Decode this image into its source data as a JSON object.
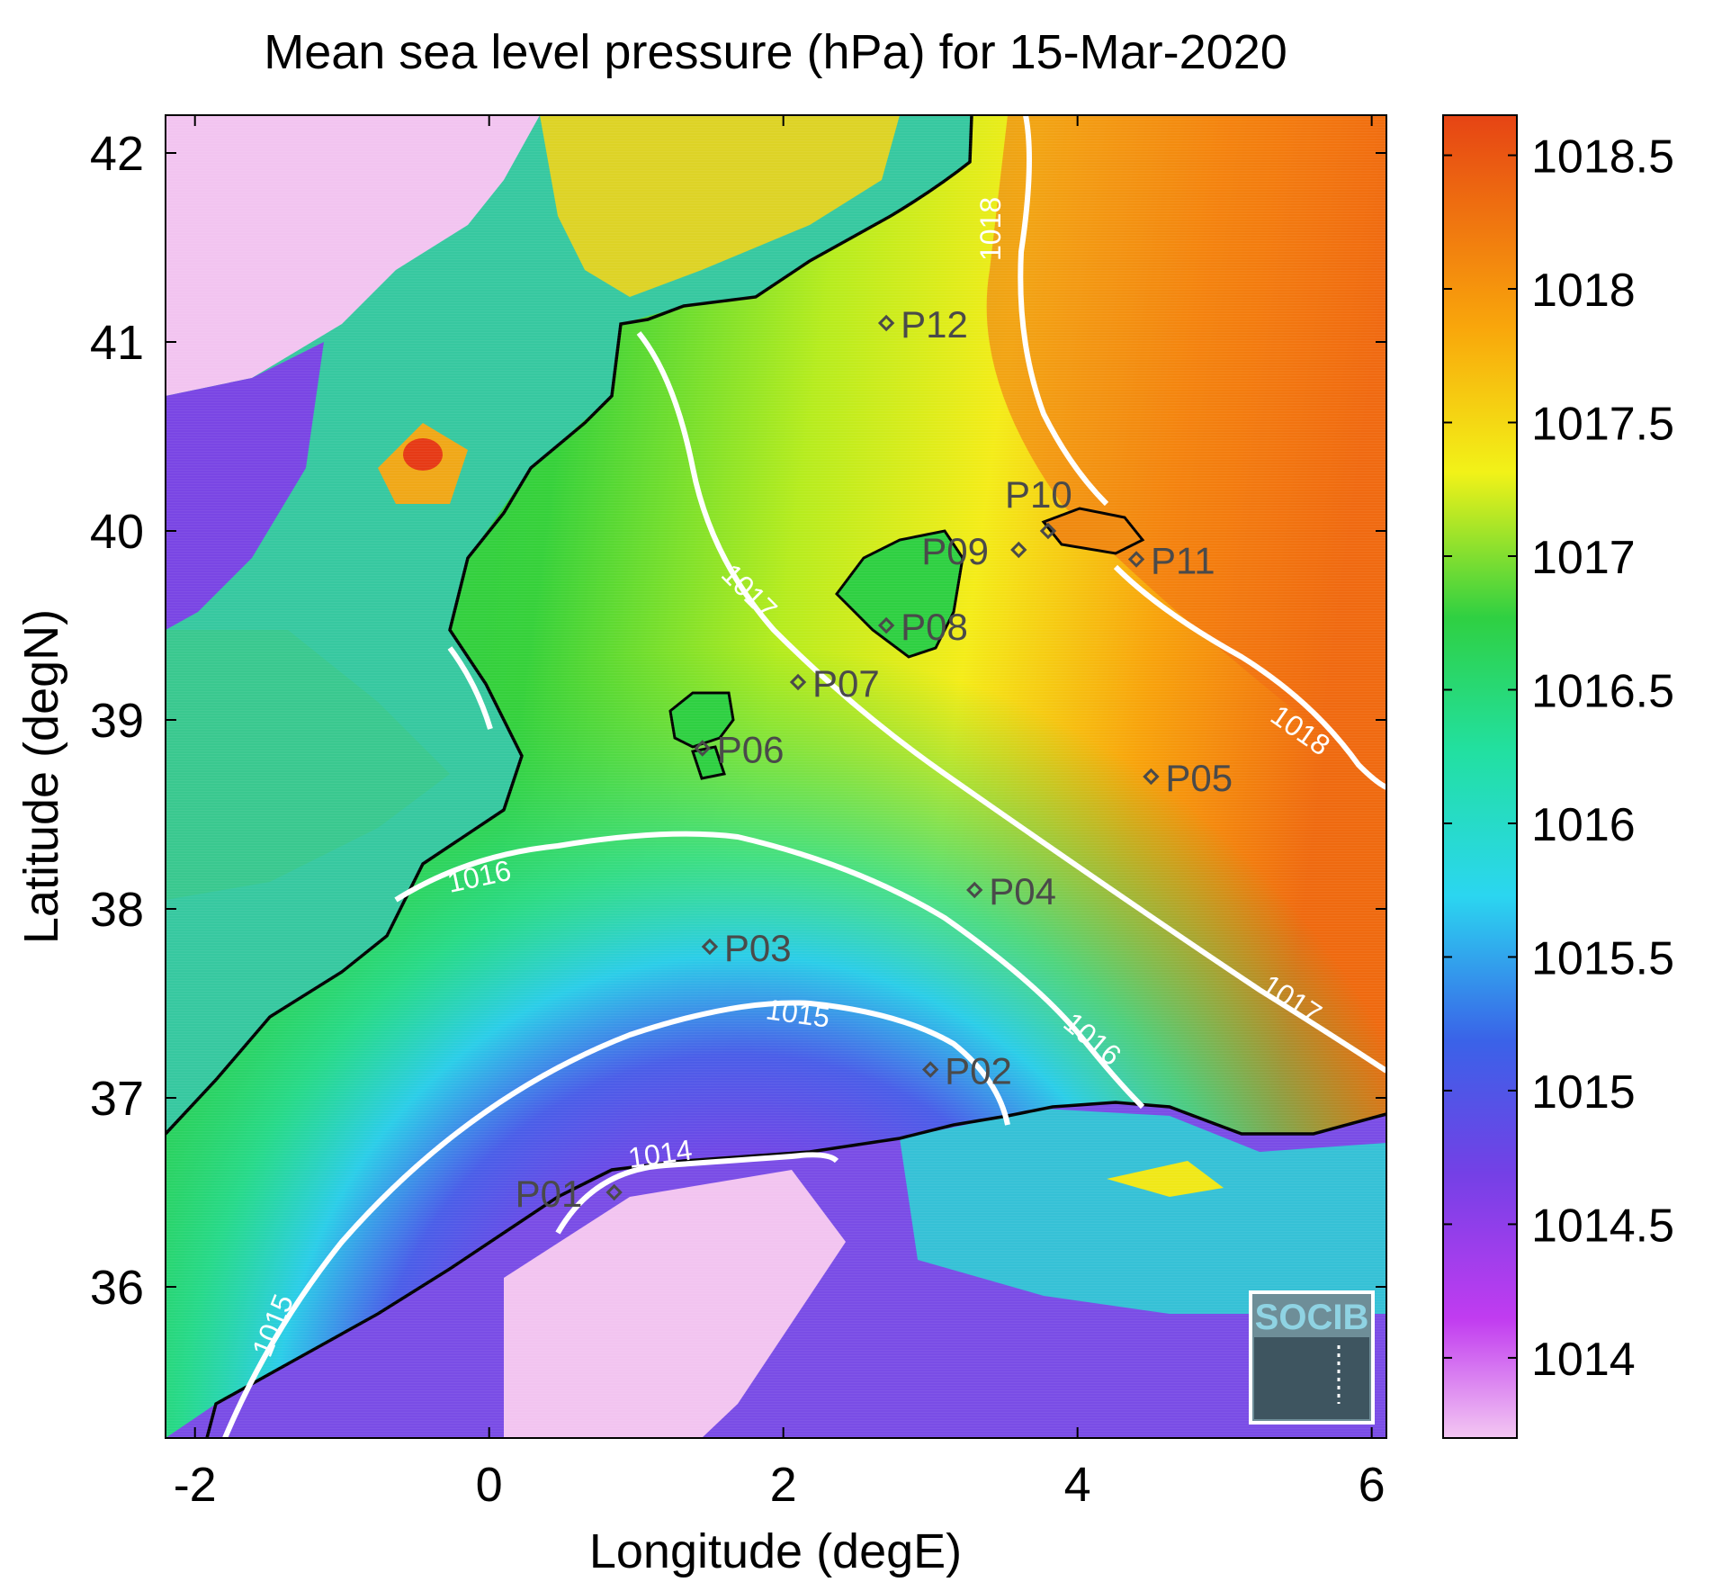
{
  "map": {
    "title": "Mean sea level pressure (hPa) for 15-Mar-2020",
    "xlabel": "Longitude (degE)",
    "ylabel": "Latitude (degN)",
    "x_range": [
      -2.2,
      6.1
    ],
    "y_range": [
      35.2,
      42.2
    ],
    "x_ticks": [
      "-2",
      "0",
      "2",
      "4",
      "6"
    ],
    "y_ticks": [
      "36",
      "37",
      "38",
      "39",
      "40",
      "41",
      "42"
    ]
  },
  "colorbar": {
    "range": [
      1013.7,
      1018.65
    ],
    "tick_labels": [
      "1014",
      "1014.5",
      "1015",
      "1015.5",
      "1016",
      "1016.5",
      "1017",
      "1017.5",
      "1018",
      "1018.5"
    ],
    "colors": [
      "#f3c7f2",
      "#c13cf0",
      "#7440e6",
      "#3a62e8",
      "#2bd6f0",
      "#22e0a0",
      "#2fd042",
      "#f2f218",
      "#f9a60b",
      "#e64414"
    ]
  },
  "contours": {
    "labels": [
      "1014",
      "1015",
      "1015",
      "1016",
      "1016",
      "1017",
      "1017",
      "1018",
      "1018"
    ],
    "color": "#ffffff"
  },
  "stations": [
    {
      "id": "P01",
      "lon": 0.85,
      "lat": 36.5
    },
    {
      "id": "P02",
      "lon": 3.0,
      "lat": 37.15
    },
    {
      "id": "P03",
      "lon": 1.5,
      "lat": 37.8
    },
    {
      "id": "P04",
      "lon": 3.3,
      "lat": 38.1
    },
    {
      "id": "P05",
      "lon": 4.5,
      "lat": 38.7
    },
    {
      "id": "P06",
      "lon": 1.45,
      "lat": 38.85
    },
    {
      "id": "P07",
      "lon": 2.1,
      "lat": 39.2
    },
    {
      "id": "P08",
      "lon": 2.7,
      "lat": 39.5
    },
    {
      "id": "P09",
      "lon": 3.6,
      "lat": 39.9
    },
    {
      "id": "P10",
      "lon": 3.8,
      "lat": 40.0
    },
    {
      "id": "P11",
      "lon": 4.4,
      "lat": 39.85
    },
    {
      "id": "P12",
      "lon": 2.7,
      "lat": 41.1
    }
  ],
  "logo": {
    "text": "SOCIB"
  }
}
